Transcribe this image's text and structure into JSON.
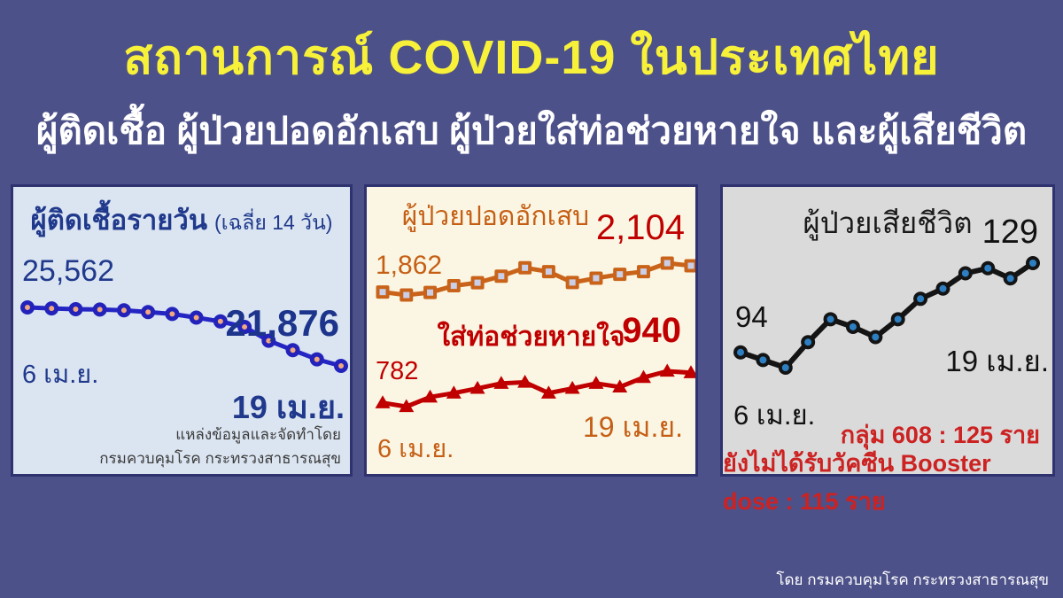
{
  "page": {
    "title": "สถานการณ์ COVID-19 ในประเทศไทย",
    "subtitle": "ผู้ติดเชื้อ ผู้ป่วยปอดอักเสบ ผู้ป่วยใส่ท่อช่วยหายใจ และผู้เสียชีวิต",
    "credit": "โดย กรมควบคุมโรค กระทรวงสาธารณสุข"
  },
  "colors": {
    "background": "#4d5189",
    "title_yellow": "#f7f13a",
    "subtitle_white": "#ffffff",
    "panel_border": "#2e3370",
    "daily_panel_bg": "#dbe5f1",
    "daily_blue": "#20398c",
    "daily_line": "#2525c4",
    "daily_marker_fill": "#f2a87e",
    "mid_panel_bg": "#fbf6e3",
    "orange": "#c55f15",
    "crimson": "#c00000",
    "square_marker_fill": "#c9cfe8",
    "deaths_panel_bg": "#dadada",
    "deaths_line": "#141414",
    "deaths_marker_fill": "#2d7fc1",
    "note_red": "#cc2222"
  },
  "panels": {
    "daily_cases": {
      "title": "ผู้ติดเชื้อรายวัน",
      "title_suffix": "(เฉลี่ย 14 วัน)",
      "start_value": "25,562",
      "end_value": "21,876",
      "start_date": "6 เม.ย.",
      "end_date": "19 เม.ย.",
      "source_line1": "แหล่งข้อมูลและจัดทำโดย",
      "source_line2": "กรมควบคุมโรค กระทรวงสาธารณสุข"
    },
    "pneumonia": {
      "title": "ผู้ป่วยปอดอักเสบ",
      "start_value": "1,862",
      "end_value": "2,104"
    },
    "intubated": {
      "title": "ใส่ท่อช่วยหายใจ",
      "start_value": "782",
      "end_value": "940",
      "start_date": "6 เม.ย.",
      "end_date": "19 เม.ย."
    },
    "deaths": {
      "title": "ผู้ป่วยเสียชีวิต",
      "start_value": "94",
      "end_value": "129",
      "start_date": "6 เม.ย.",
      "end_date": "19 เม.ย.",
      "note_line1": "กลุ่ม 608 : 125 ราย",
      "note_line2": "ยังไม่ได้รับวัคซีน Booster dose : 115 ราย"
    }
  },
  "chart_data": [
    {
      "type": "line",
      "name": "daily_new_cases",
      "title": "ผู้ติดเชื้อรายวัน (เฉลี่ย 14 วัน)",
      "dates": [
        "6 เม.ย.",
        "7 เม.ย.",
        "8 เม.ย.",
        "9 เม.ย.",
        "10 เม.ย.",
        "11 เม.ย.",
        "12 เม.ย.",
        "13 เม.ย.",
        "14 เม.ย.",
        "15 เม.ย.",
        "16 เม.ย.",
        "17 เม.ย.",
        "18 เม.ย.",
        "19 เม.ย."
      ],
      "values": [
        25562,
        25500,
        25450,
        25430,
        25380,
        25270,
        25150,
        24920,
        24680,
        24330,
        23460,
        22870,
        22290,
        21876
      ],
      "labeled_points": {
        "first": 25562,
        "last": 21876
      },
      "ylim": [
        21500,
        26000
      ],
      "grid": false,
      "legend": "none",
      "line_color": "#2525c4",
      "marker": "circle",
      "marker_fill": "#f2a87e",
      "marker_stroke": "#2323bb"
    },
    {
      "type": "line",
      "name": "pneumonia_patients",
      "title": "ผู้ป่วยปอดอักเสบ",
      "dates": [
        "6 เม.ย.",
        "7 เม.ย.",
        "8 เม.ย.",
        "9 เม.ย.",
        "10 เม.ย.",
        "11 เม.ย.",
        "12 เม.ย.",
        "13 เม.ย.",
        "14 เม.ย.",
        "15 เม.ย.",
        "16 เม.ย.",
        "17 เม.ย.",
        "18 เม.ย.",
        "19 เม.ย."
      ],
      "values": [
        1862,
        1835,
        1858,
        1920,
        1948,
        2008,
        2085,
        2050,
        1950,
        1990,
        2025,
        2050,
        2128,
        2104
      ],
      "labeled_points": {
        "first": 1862,
        "last": 2104
      },
      "ylim": [
        1800,
        2180
      ],
      "grid": false,
      "legend": "none",
      "line_color": "#c9631a",
      "marker": "square",
      "marker_fill": "#c9cfe8",
      "marker_stroke": "#c9631a"
    },
    {
      "type": "line",
      "name": "intubated_patients",
      "title": "ใส่ท่อช่วยหายใจ",
      "dates": [
        "6 เม.ย.",
        "7 เม.ย.",
        "8 เม.ย.",
        "9 เม.ย.",
        "10 เม.ย.",
        "11 เม.ย.",
        "12 เม.ย.",
        "13 เม.ย.",
        "14 เม.ย.",
        "15 เม.ย.",
        "16 เม.ย.",
        "17 เม.ย.",
        "18 เม.ย.",
        "19 เม.ย."
      ],
      "values": [
        782,
        762,
        812,
        833,
        858,
        884,
        890,
        833,
        858,
        884,
        865,
        915,
        948,
        940
      ],
      "labeled_points": {
        "first": 782,
        "last": 940
      },
      "ylim": [
        740,
        980
      ],
      "grid": false,
      "legend": "none",
      "line_color": "#c00000",
      "marker": "triangle",
      "marker_fill": "#c00000",
      "marker_stroke": "#c00000"
    },
    {
      "type": "line",
      "name": "deaths",
      "title": "ผู้ป่วยเสียชีวิต",
      "dates": [
        "6 เม.ย.",
        "7 เม.ย.",
        "8 เม.ย.",
        "9 เม.ย.",
        "10 เม.ย.",
        "11 เม.ย.",
        "12 เม.ย.",
        "13 เม.ย.",
        "14 เม.ย.",
        "15 เม.ย.",
        "16 เม.ย.",
        "17 เม.ย.",
        "18 เม.ย.",
        "19 เม.ย."
      ],
      "values": [
        94,
        91,
        88,
        98,
        107,
        104,
        100,
        107,
        115,
        119,
        125,
        127,
        123,
        129
      ],
      "labeled_points": {
        "first": 94,
        "last": 129
      },
      "ylim": [
        85,
        135
      ],
      "grid": false,
      "legend": "none",
      "line_color": "#141414",
      "marker": "dot",
      "marker_fill": "#2d7fc1",
      "marker_stroke": "#141414"
    }
  ]
}
